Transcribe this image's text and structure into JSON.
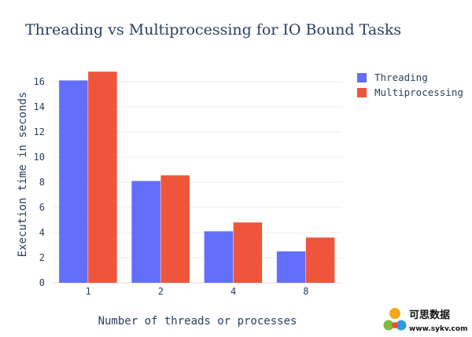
{
  "chart_data": {
    "type": "bar",
    "title": "Threading vs Multiprocessing for IO Bound Tasks",
    "xlabel": "Number of threads or processes",
    "ylabel": "Execution time in seconds",
    "categories": [
      "1",
      "2",
      "4",
      "8"
    ],
    "series": [
      {
        "name": "Threading",
        "color": "#636efa",
        "values": [
          16.1,
          8.1,
          4.1,
          2.5
        ]
      },
      {
        "name": "Multiprocessing",
        "color": "#ef553b",
        "values": [
          16.8,
          8.55,
          4.8,
          3.6
        ]
      }
    ],
    "ylim": [
      0,
      17.5
    ],
    "yticks": [
      0,
      2,
      4,
      6,
      8,
      10,
      12,
      14,
      16
    ],
    "grid": true,
    "legend": "top-right"
  },
  "watermark": {
    "text_cn": "可思数据",
    "url": "www.sykv.com",
    "colors": [
      "#f1a81c",
      "#2f9bdb",
      "#7cbb3c",
      "#e9532f"
    ]
  }
}
